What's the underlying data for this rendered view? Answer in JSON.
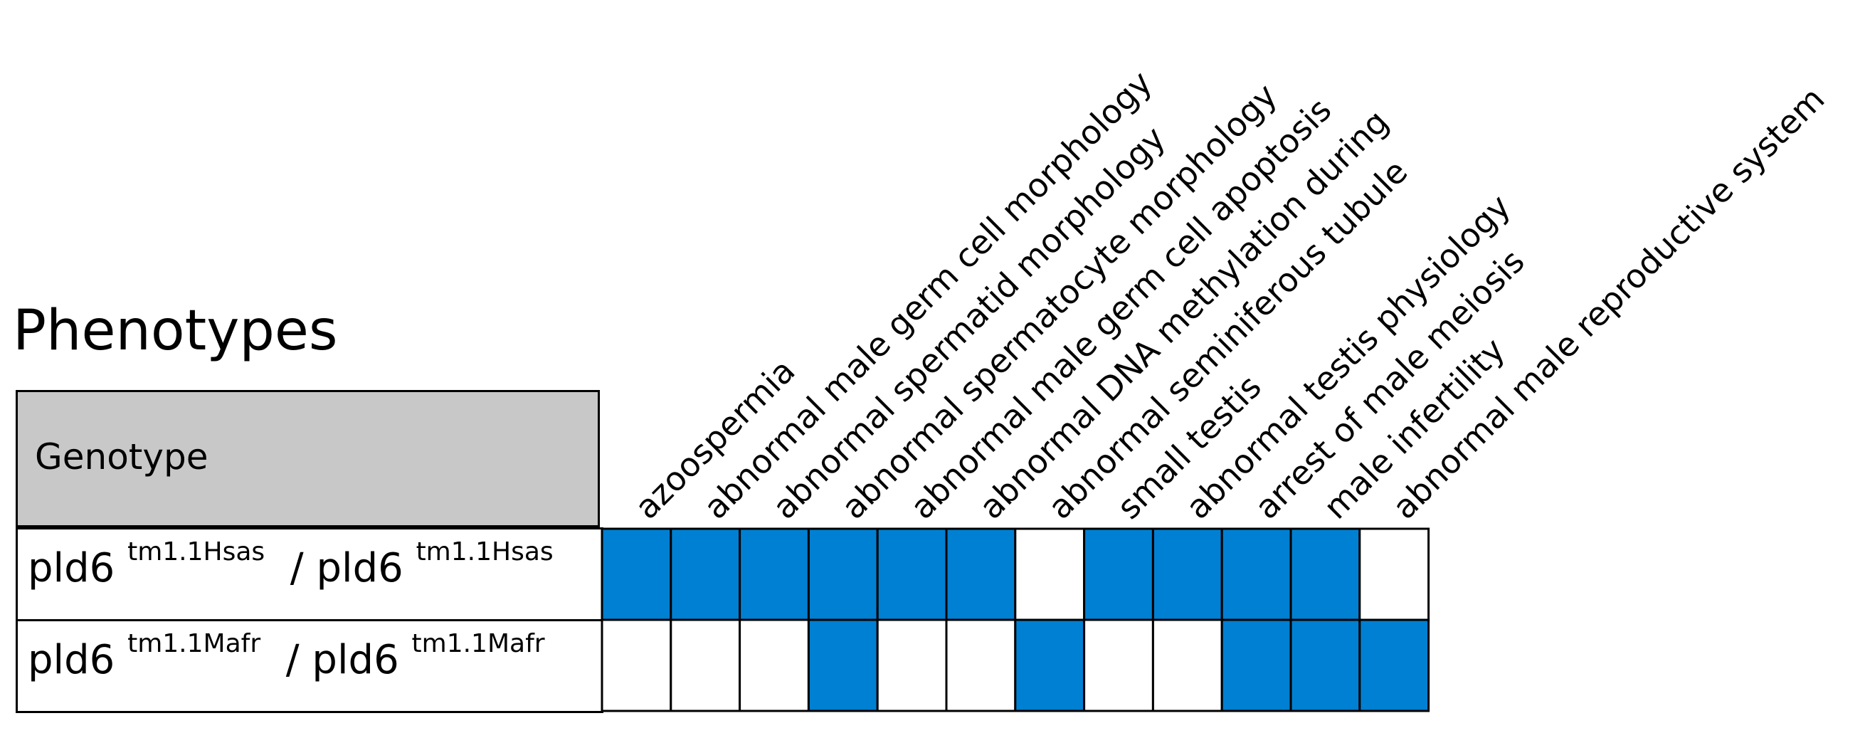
{
  "colors": {
    "present": "#0080d2",
    "absent": "#ffffff",
    "header_bg": "#c8c8c8",
    "grid_line": "#000000"
  },
  "chart_data": {
    "type": "heatmap",
    "title": "Phenotypes",
    "row_header": "Genotype",
    "columns": [
      "azoospermia",
      "abnormal male germ cell morphology",
      "abnormal spermatid morphology",
      "abnormal spermatocyte morphology",
      "abnormal male germ cell apoptosis",
      "abnormal DNA methylation during",
      "abnormal seminiferous tubule",
      "small testis",
      "abnormal testis physiology",
      "arrest of male meiosis",
      "male infertility",
      "abnormal male reproductive system"
    ],
    "rows": [
      {
        "gene": "pld6",
        "allele": "tm1.1Hsas",
        "separator": "/",
        "values": [
          1,
          1,
          1,
          1,
          1,
          1,
          0,
          1,
          1,
          1,
          1,
          0
        ]
      },
      {
        "gene": "pld6",
        "allele": "tm1.1Mafr",
        "separator": "/",
        "values": [
          0,
          0,
          0,
          1,
          0,
          0,
          1,
          0,
          0,
          1,
          1,
          1
        ]
      }
    ]
  }
}
